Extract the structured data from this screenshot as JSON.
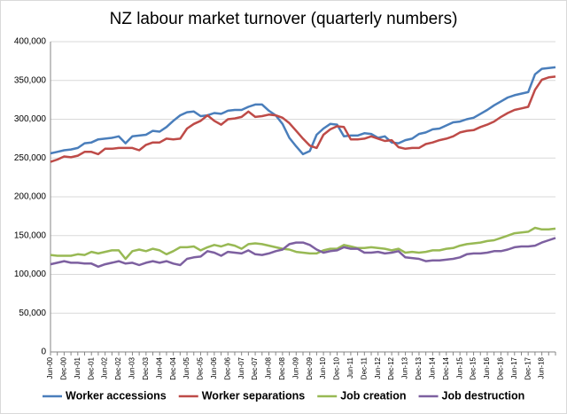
{
  "chart_data": {
    "type": "line",
    "title": "NZ labour market turnover (quarterly numbers)",
    "categories": [
      "Jun-00",
      null,
      "Dec-00",
      null,
      "Jun-01",
      null,
      "Dec-01",
      null,
      "Jun-02",
      null,
      "Dec-02",
      null,
      "Jun-03",
      null,
      "Dec-03",
      null,
      "Jun-04",
      null,
      "Dec-04",
      null,
      "Jun-05",
      null,
      "Dec-05",
      null,
      "Jun-06",
      null,
      "Dec-06",
      null,
      "Jun-07",
      null,
      "Dec-07",
      null,
      "Jun-08",
      null,
      "Dec-08",
      null,
      "Jun-09",
      null,
      "Dec-09",
      null,
      "Jun-10",
      null,
      "Dec-10",
      null,
      "Jun-11",
      null,
      "Dec-11",
      null,
      "Jun-12",
      null,
      "Dec-12",
      null,
      "Jun-13",
      null,
      "Dec-13",
      null,
      "Jun-14",
      null,
      "Dec-14",
      null,
      "Jun-15",
      null,
      "Dec-15",
      null,
      "Jun-16",
      null,
      "Dec-16",
      null,
      "Jun-17",
      null,
      "Dec-17",
      null,
      "Jun-18",
      null,
      null
    ],
    "series": [
      {
        "name": "Worker accessions",
        "color": "#4a7ebb",
        "values": [
          256000,
          258000,
          260000,
          261000,
          263000,
          269000,
          270000,
          274000,
          275000,
          276000,
          278000,
          269000,
          278000,
          279000,
          280000,
          285000,
          284000,
          290000,
          298000,
          305000,
          309000,
          310000,
          304000,
          305000,
          308000,
          307000,
          311000,
          312000,
          312000,
          316000,
          319000,
          319000,
          311000,
          305000,
          294000,
          276000,
          265000,
          255000,
          259000,
          280000,
          288000,
          294000,
          293000,
          278000,
          279000,
          279000,
          282000,
          281000,
          276000,
          278000,
          270000,
          269000,
          273000,
          275000,
          281000,
          283000,
          287000,
          288000,
          292000,
          296000,
          297000,
          300000,
          302000,
          307000,
          312000,
          318000,
          323000,
          328000,
          331000,
          333000,
          335000,
          358000,
          365000,
          366000,
          367000
        ]
      },
      {
        "name": "Worker separations",
        "color": "#be4b48",
        "values": [
          245000,
          248000,
          252000,
          251000,
          253000,
          258000,
          258000,
          255000,
          262000,
          262000,
          263000,
          263000,
          263000,
          260000,
          267000,
          270000,
          270000,
          275000,
          274000,
          275000,
          288000,
          294000,
          298000,
          305000,
          298000,
          293000,
          300000,
          301000,
          303000,
          310000,
          303000,
          304000,
          306000,
          305000,
          302000,
          295000,
          285000,
          275000,
          266000,
          263000,
          280000,
          287000,
          291000,
          290000,
          274000,
          274000,
          275000,
          278000,
          275000,
          272000,
          273000,
          264000,
          262000,
          263000,
          263000,
          268000,
          270000,
          273000,
          275000,
          278000,
          283000,
          285000,
          286000,
          290000,
          293000,
          297000,
          303000,
          308000,
          312000,
          314000,
          316000,
          338000,
          351000,
          354000,
          355000
        ]
      },
      {
        "name": "Job creation",
        "color": "#98b954",
        "values": [
          125000,
          124000,
          124000,
          124000,
          126000,
          125000,
          129000,
          127000,
          129000,
          131000,
          131000,
          120000,
          130000,
          132000,
          130000,
          133000,
          131000,
          126000,
          130000,
          135000,
          135000,
          136000,
          131000,
          135000,
          138000,
          136000,
          139000,
          137000,
          133000,
          139000,
          140000,
          139000,
          137000,
          135000,
          133000,
          132000,
          129000,
          128000,
          127000,
          127000,
          131000,
          133000,
          133000,
          138000,
          136000,
          134000,
          134000,
          135000,
          134000,
          133000,
          131000,
          133000,
          128000,
          129000,
          128000,
          129000,
          131000,
          131000,
          133000,
          134000,
          137000,
          139000,
          140000,
          141000,
          143000,
          144000,
          147000,
          150000,
          153000,
          154000,
          155000,
          160000,
          158000,
          158000,
          159000
        ]
      },
      {
        "name": "Job destruction",
        "color": "#7d60a0",
        "values": [
          113000,
          115000,
          117000,
          115000,
          115000,
          114000,
          114000,
          110000,
          113000,
          115000,
          117000,
          114000,
          115000,
          112000,
          115000,
          117000,
          115000,
          117000,
          114000,
          112000,
          120000,
          122000,
          123000,
          130000,
          128000,
          124000,
          129000,
          128000,
          127000,
          131000,
          126000,
          125000,
          127000,
          130000,
          132000,
          139000,
          141000,
          141000,
          138000,
          132000,
          128000,
          130000,
          131000,
          135000,
          133000,
          133000,
          128000,
          128000,
          129000,
          127000,
          128000,
          130000,
          122000,
          121000,
          120000,
          117000,
          118000,
          118000,
          119000,
          120000,
          122000,
          126000,
          127000,
          127000,
          128000,
          130000,
          130000,
          132000,
          135000,
          136000,
          136000,
          137000,
          141000,
          144000,
          147000
        ]
      }
    ],
    "ylim": [
      0,
      400000
    ],
    "yticks": [
      0,
      {
        "value": 50000,
        "label": "50,000"
      },
      {
        "value": 100000,
        "label": "100,000"
      },
      {
        "value": 150000,
        "label": "150,000"
      },
      {
        "value": 200000,
        "label": "200,000"
      },
      {
        "value": 250000,
        "label": "250,000"
      },
      {
        "value": 300000,
        "label": "300,000"
      },
      {
        "value": 350000,
        "label": "350,000"
      },
      {
        "value": 400000,
        "label": "400,000"
      }
    ],
    "grid": true,
    "legend": "bottom"
  }
}
